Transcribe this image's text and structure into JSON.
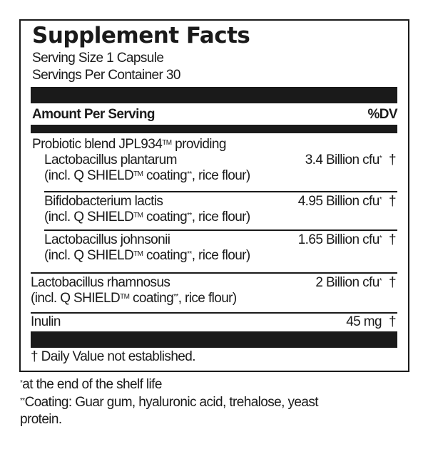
{
  "title": "Supplement Facts",
  "serving_size": "Serving Size 1 Capsule",
  "servings_per_container": "Servings Per Container 30",
  "header": {
    "amount": "Amount Per Serving",
    "dv": "%DV"
  },
  "blend": {
    "label": "Probiotic blend JPL934",
    "tm": "TM",
    "suffix": " providing"
  },
  "items": [
    {
      "name": "Lactobacillus plantarum",
      "amount": "3.4 Billion cfu",
      "mark": "*",
      "dv": "†",
      "sub_a": "(incl. Q SHIELD",
      "tm": "TM",
      "sub_b": " coating",
      "sub_mark": "**",
      "sub_c": ", rice flour)"
    },
    {
      "name": "Bifidobacterium lactis",
      "amount": "4.95 Billion cfu",
      "mark": "*",
      "dv": "†",
      "sub_a": "(incl. Q SHIELD",
      "tm": "TM",
      "sub_b": " coating",
      "sub_mark": "**",
      "sub_c": ", rice flour)"
    },
    {
      "name": "Lactobacillus johnsonii",
      "amount": "1.65 Billion cfu",
      "mark": "*",
      "dv": "†",
      "sub_a": "(incl. Q SHIELD",
      "tm": "TM",
      "sub_b": " coating",
      "sub_mark": "**",
      "sub_c": ", rice flour)"
    },
    {
      "name": "Lactobacillus rhamnosus",
      "amount": "2 Billion cfu",
      "mark": "*",
      "dv": "†",
      "sub_a": "(incl. Q SHIELD",
      "tm": "TM",
      "sub_b": " coating",
      "sub_mark": "**",
      "sub_c": ", rice flour)"
    },
    {
      "name": "Inulin",
      "amount": "45 mg",
      "mark": "",
      "dv": "†"
    }
  ],
  "dv_note": "† Daily Value not established.",
  "footnotes": {
    "f1_mark": "*",
    "f1": "at the end of the shelf life",
    "f2_mark": "**",
    "f2_line1": "Coating: Guar gum, hyaluronic acid, trehalose, yeast",
    "f2_line2": "protein."
  }
}
